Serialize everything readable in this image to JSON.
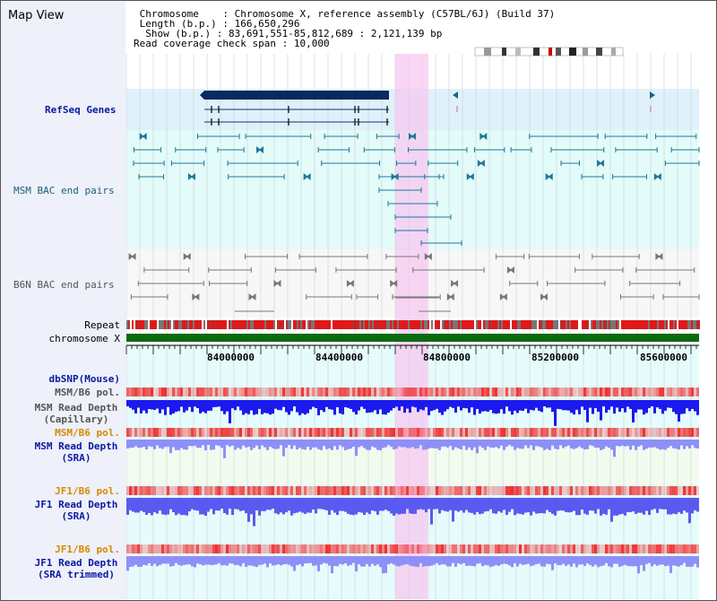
{
  "app_title": "Map View",
  "info": {
    "chromosome_label": "Chromosome",
    "chromosome_value": "Chromosome X, reference assembly (C57BL/6J) (Build 37)",
    "length_label": "Length (b.p.)",
    "length_value": "166,650,296",
    "show_label": "Show (b.p.)",
    "show_value": "83,691,551-85,812,689 : 2,121,139 bp",
    "coverage_label": "Read coverage check span",
    "coverage_value": "10,000"
  },
  "track_labels": {
    "refseq": "RefSeq Genes",
    "msm_bac": "MSM BAC end pairs",
    "b6n_bac": "B6N BAC end pairs",
    "repeat": "Repeat",
    "chromosome": "chromosome X",
    "dbsnp": "dbSNP(Mouse)",
    "msm_b6_pol_1": "MSM/B6 pol.",
    "msm_depth_cap_line1": "MSM Read Depth",
    "msm_depth_cap_line2": "(Capillary)",
    "msm_b6_pol_2": "MSM/B6 pol.",
    "msm_depth_sra_line1": "MSM Read Depth",
    "msm_depth_sra_line2": "(SRA)",
    "jf1_b6_pol_1": "JF1/B6 pol.",
    "jf1_depth_sra_line1": "JF1 Read Depth",
    "jf1_depth_sra_line2": "(SRA)",
    "jf1_b6_pol_2": "JF1/B6 pol.",
    "jf1_depth_trim_line1": "JF1 Read Depth",
    "jf1_depth_trim_line2": "(SRA trimmed)"
  },
  "axis_ticks": [
    "84000000",
    "84400000",
    "84800000",
    "85200000",
    "85600000"
  ],
  "colors": {
    "highlight": "#f6c8f0",
    "refseq_bg": "#dff1fa",
    "msm_bac_bg": "#e3fbf9",
    "b6n_bac_bg": "#f7f7f7",
    "lower_bg": "#e6fbfb",
    "msm_sra_bg": "#f3fbef",
    "gene_dark": "#0a2a5e",
    "bac_teal": "#1d7898",
    "bac_gray": "#777777",
    "chromosome_green": "#0a6a10",
    "depth_blue_dark": "#1a1aee",
    "depth_blue_light": "#8f8ff8",
    "depth_blue_mid": "#5a5af0",
    "pol_red": "#ee3030"
  }
}
